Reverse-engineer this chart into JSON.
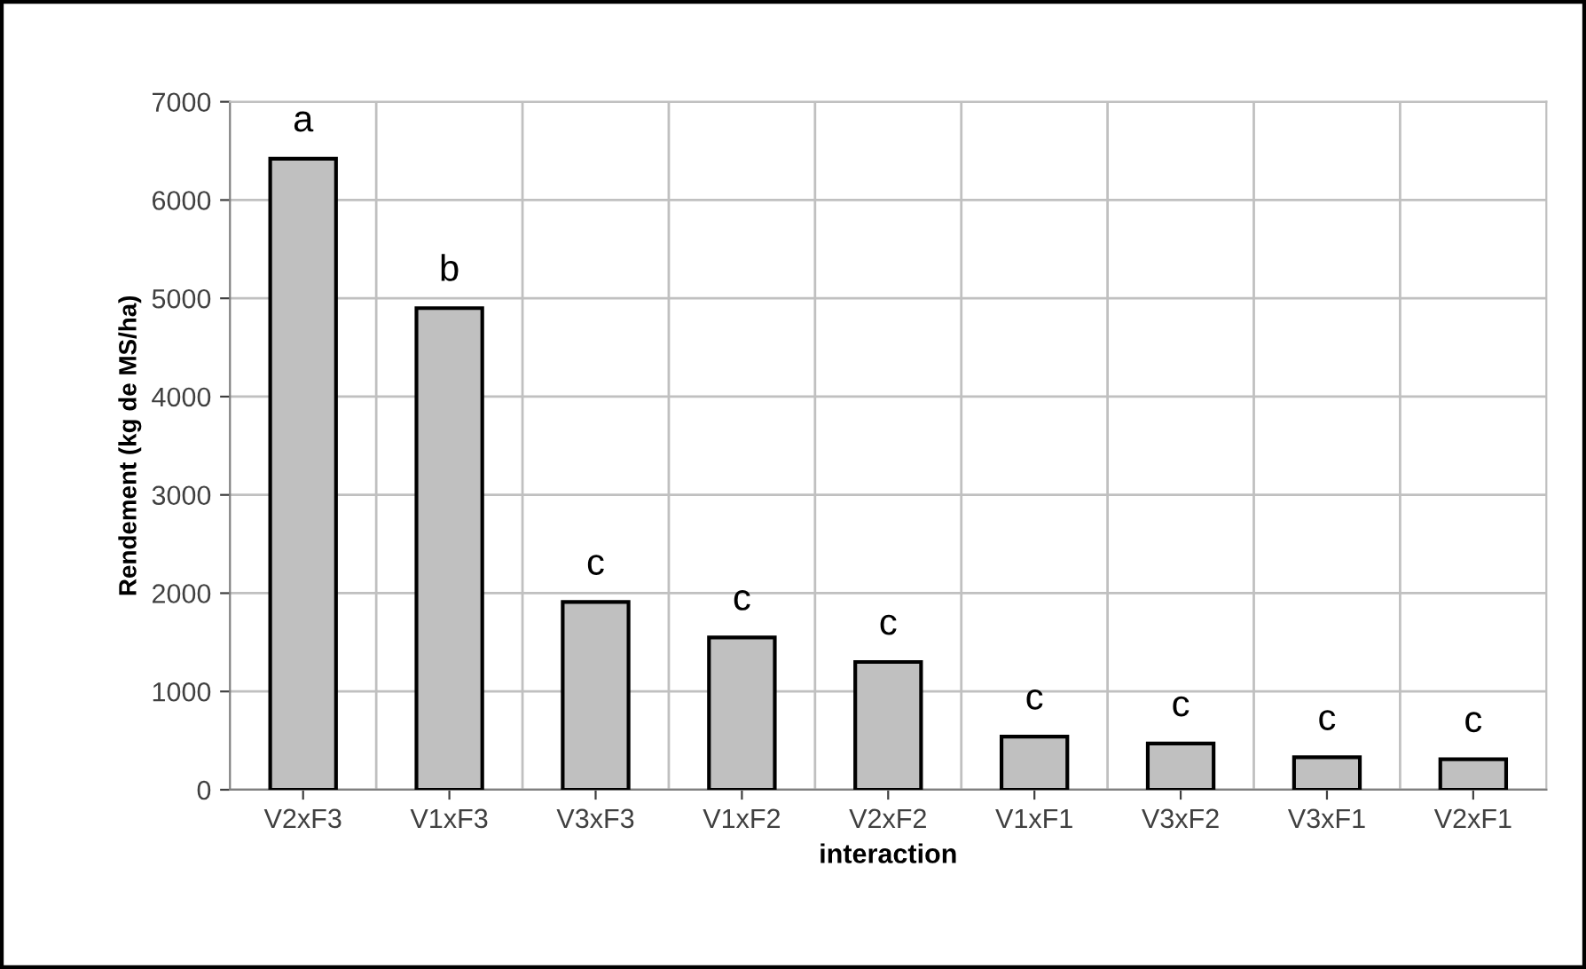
{
  "chart_data": {
    "type": "bar",
    "xlabel": "interaction",
    "ylabel": "Rendement (kg de MS/ha)",
    "categories": [
      "V2xF3",
      "V1xF3",
      "V3xF3",
      "V1xF2",
      "V2xF2",
      "V1xF1",
      "V3xF2",
      "V3xF1",
      "V2xF1"
    ],
    "values": [
      6420,
      4900,
      1910,
      1550,
      1300,
      540,
      470,
      330,
      310
    ],
    "color": "#c0c0c0",
    "ylim": [
      0,
      7000
    ],
    "yticks": [
      0,
      1000,
      2000,
      3000,
      4000,
      5000,
      6000,
      7000
    ],
    "grid": true,
    "annotations": [
      {
        "text": "a",
        "x": "V2xF3",
        "y": 6420
      },
      {
        "text": "b",
        "x": "V1xF3",
        "y": 4900
      },
      {
        "text": "c",
        "x": "V3xF3",
        "y": 1910
      },
      {
        "text": "c",
        "x": "V1xF2",
        "y": 1550
      },
      {
        "text": "c",
        "x": "V2xF2",
        "y": 1300
      },
      {
        "text": "c",
        "x": "V1xF1",
        "y": 540
      },
      {
        "text": "c",
        "x": "V3xF2",
        "y": 470
      },
      {
        "text": "c",
        "x": "V3xF1",
        "y": 330
      },
      {
        "text": "c",
        "x": "V2xF1",
        "y": 310
      }
    ]
  }
}
